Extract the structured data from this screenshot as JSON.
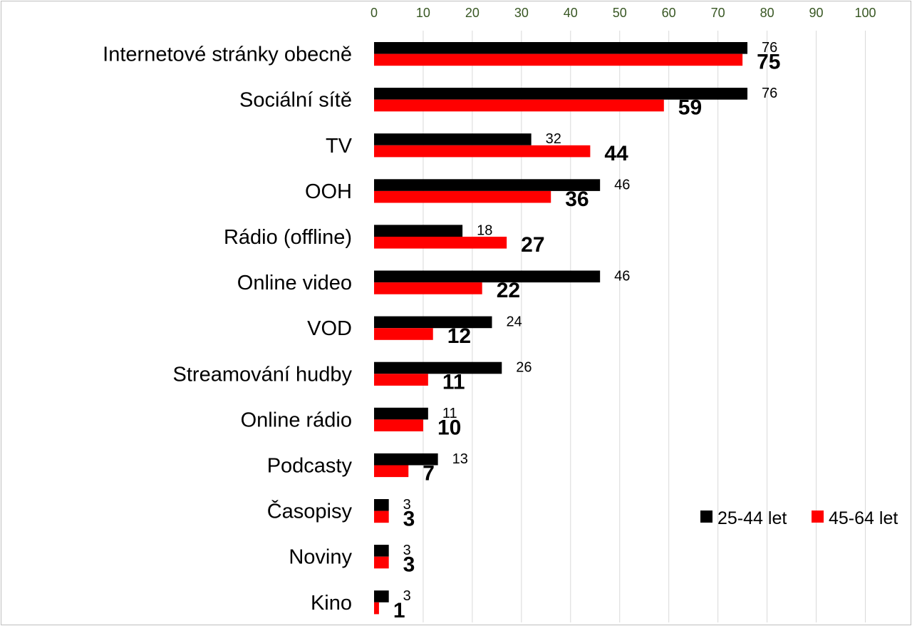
{
  "chart_data": {
    "type": "bar",
    "orientation": "horizontal",
    "title": "",
    "xlabel": "",
    "ylabel": "",
    "xlim": [
      0,
      100
    ],
    "x_ticks": [
      0,
      10,
      20,
      30,
      40,
      50,
      60,
      70,
      80,
      90,
      100
    ],
    "x_axis_position": "top",
    "grid": true,
    "legend_position": "bottom-right",
    "categories": [
      "Internetové stránky obecně",
      "Sociální sítě",
      "TV",
      "OOH",
      "Rádio (offline)",
      "Online video",
      "VOD",
      "Streamování hudby",
      "Online rádio",
      "Podcasty",
      "Časopisy",
      "Noviny",
      "Kino"
    ],
    "series": [
      {
        "name": "25-44 let",
        "color": "#000000",
        "values": [
          76,
          76,
          32,
          46,
          18,
          46,
          24,
          26,
          11,
          13,
          3,
          3,
          3
        ]
      },
      {
        "name": "45-64 let",
        "color": "#ff0000",
        "values": [
          75,
          59,
          44,
          36,
          27,
          22,
          12,
          11,
          10,
          7,
          3,
          3,
          1
        ]
      }
    ]
  }
}
